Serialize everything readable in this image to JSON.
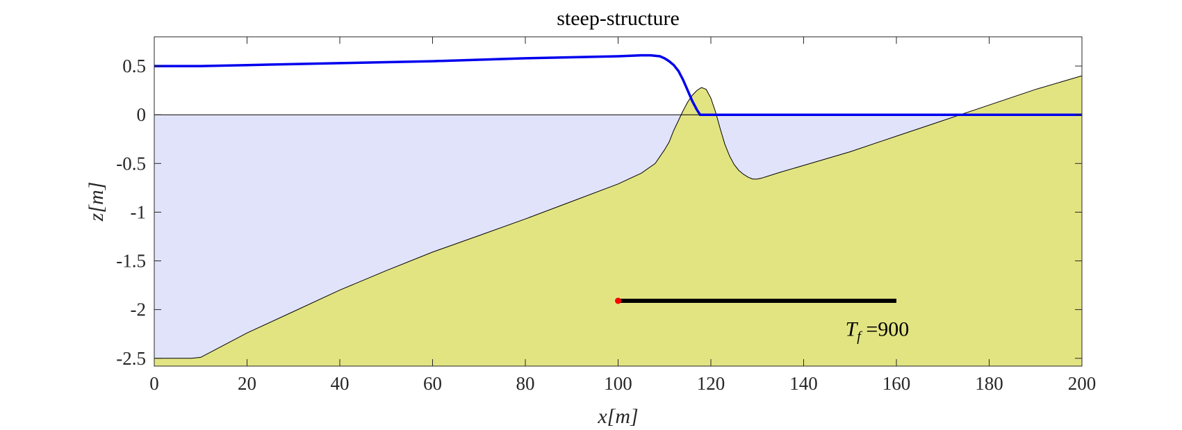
{
  "chart_data": {
    "type": "area",
    "title": "steep-structure",
    "xlabel": "x[m]",
    "ylabel": "z[m]",
    "xlim": [
      0,
      200
    ],
    "ylim": [
      -2.58,
      0.8
    ],
    "xticks": [
      0,
      20,
      40,
      60,
      80,
      100,
      120,
      140,
      160,
      180,
      200
    ],
    "xtick_labels": [
      "0",
      "20",
      "40",
      "60",
      "80",
      "100",
      "120",
      "140",
      "160",
      "180",
      "200"
    ],
    "yticks": [
      0.5,
      0,
      -0.5,
      -1,
      -1.5,
      -2,
      -2.5
    ],
    "ytick_labels": [
      "0.5",
      "0",
      "-0.5",
      "-1",
      "-1.5",
      "-2",
      "-2.5"
    ],
    "grid": false,
    "colors": {
      "water_fill": "#e1e3fa",
      "bed_fill": "#e2e482",
      "bed_line": "#000000",
      "surface_line": "#0000ee",
      "still_water_line": "#000000",
      "progress_bar": "#000000",
      "progress_marker": "#ff0000"
    },
    "series": [
      {
        "role": "bed",
        "x": [
          0,
          3,
          6,
          8,
          10,
          12,
          20,
          30,
          40,
          50,
          60,
          70,
          80,
          90,
          100,
          105,
          108,
          110,
          111,
          112,
          113,
          114,
          115,
          116,
          117,
          118,
          119,
          120,
          121,
          122,
          123,
          124,
          125,
          126,
          127,
          128,
          129,
          130,
          131,
          135,
          140,
          150,
          160,
          170,
          180,
          190,
          200
        ],
        "y": [
          -2.5,
          -2.5,
          -2.5,
          -2.5,
          -2.49,
          -2.44,
          -2.24,
          -2.02,
          -1.8,
          -1.6,
          -1.41,
          -1.24,
          -1.07,
          -0.89,
          -0.71,
          -0.6,
          -0.5,
          -0.36,
          -0.28,
          -0.16,
          -0.06,
          0.04,
          0.13,
          0.2,
          0.25,
          0.28,
          0.26,
          0.17,
          0.03,
          -0.14,
          -0.3,
          -0.42,
          -0.51,
          -0.57,
          -0.61,
          -0.64,
          -0.66,
          -0.66,
          -0.65,
          -0.59,
          -0.52,
          -0.38,
          -0.22,
          -0.06,
          0.1,
          0.26,
          0.4
        ]
      },
      {
        "role": "surface",
        "x": [
          0,
          10,
          20,
          40,
          60,
          80,
          100,
          105,
          107,
          109,
          110,
          111,
          112,
          113,
          114,
          115,
          116,
          117,
          117.7,
          118.5,
          120,
          140,
          160,
          180,
          200
        ],
        "y": [
          0.5,
          0.5,
          0.51,
          0.53,
          0.55,
          0.58,
          0.6,
          0.61,
          0.61,
          0.6,
          0.58,
          0.55,
          0.51,
          0.45,
          0.36,
          0.25,
          0.14,
          0.05,
          0.0,
          0.0,
          0.0,
          0.0,
          0.0,
          0.0,
          0.0
        ]
      }
    ],
    "progress_bar": {
      "x_start": 100,
      "x_end": 160,
      "y": -1.91
    },
    "annotation": {
      "text": "T_f =900",
      "tf_value": "900",
      "x": 149,
      "y": -2.27
    }
  }
}
